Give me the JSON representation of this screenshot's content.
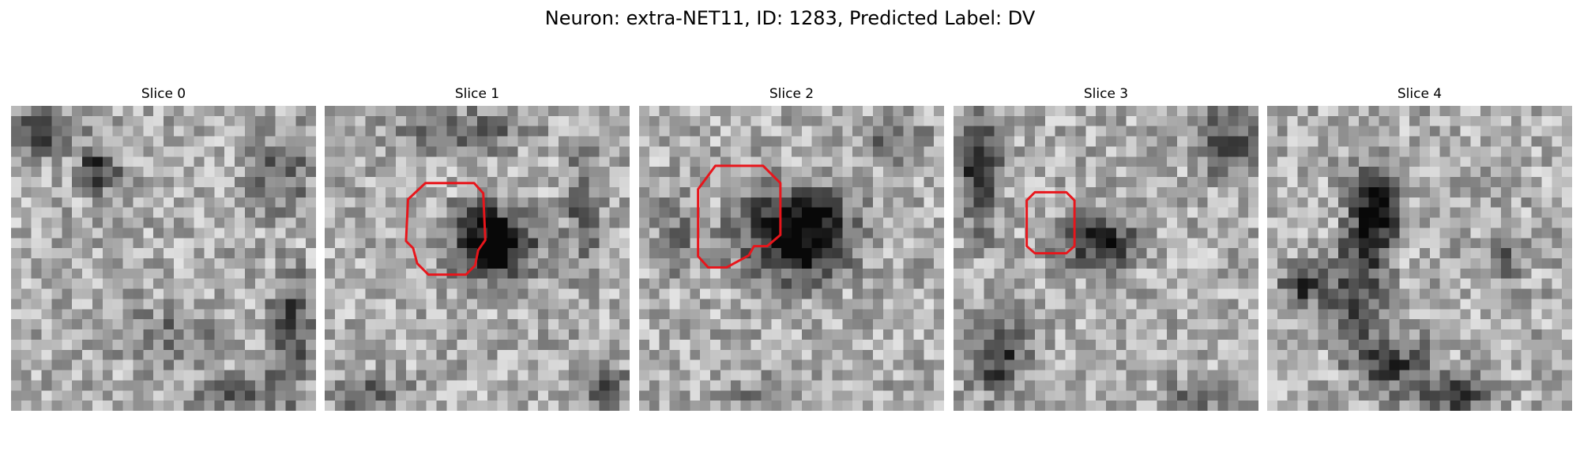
{
  "figure": {
    "title": "Neuron: extra-NET11, ID: 1283, Predicted Label: DV"
  },
  "slices": [
    {
      "label": "Slice 0",
      "has_contour": false
    },
    {
      "label": "Slice 1",
      "has_contour": true
    },
    {
      "label": "Slice 2",
      "has_contour": true
    },
    {
      "label": "Slice 3",
      "has_contour": true
    },
    {
      "label": "Slice 4",
      "has_contour": false
    }
  ],
  "colors": {
    "contour": "#e8151b"
  }
}
